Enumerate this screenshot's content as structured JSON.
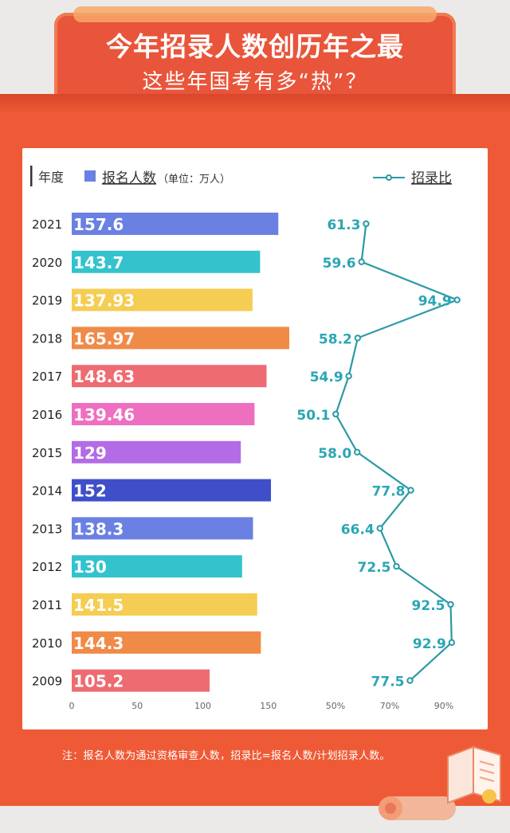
{
  "header": {
    "title_line1": "今年招录人数创历年之最",
    "title_line2": "这些年国考有多“热”？"
  },
  "legend": {
    "year_label": "年度",
    "bar_label": "报名人数",
    "bar_unit": "（单位：万人）",
    "line_label": "招录比"
  },
  "footnote": "注：报名人数为通过资格审查人数，招录比=报名人数/计划招录人数。",
  "colors": {
    "line": "#2a9aa4",
    "ratio_text": "#2aa6b4",
    "background": "#ef5a36"
  },
  "chart_data": {
    "type": "bar",
    "orientation": "horizontal",
    "categories": [
      "2021",
      "2020",
      "2019",
      "2018",
      "2017",
      "2016",
      "2015",
      "2014",
      "2013",
      "2012",
      "2011",
      "2010",
      "2009"
    ],
    "series": [
      {
        "name": "报名人数",
        "values": [
          157.6,
          143.7,
          137.93,
          165.97,
          148.63,
          139.46,
          129,
          152,
          138.3,
          130,
          141.5,
          144.3,
          105.2
        ],
        "value_labels": [
          "157.6",
          "143.7",
          "137.93",
          "165.97",
          "148.63",
          "139.46",
          "129",
          "152",
          "138.3",
          "130",
          "141.5",
          "144.3",
          "105.2"
        ],
        "colors": [
          "#6a80e2",
          "#33c3cd",
          "#f5cd52",
          "#f08a47",
          "#ee6b72",
          "#ee6fc0",
          "#b46be6",
          "#3f4fca",
          "#6a80e2",
          "#33c3cd",
          "#f5cd52",
          "#f08a47",
          "#ee6b72"
        ]
      },
      {
        "name": "招录比",
        "type": "line",
        "values": [
          61.3,
          59.6,
          94.9,
          58.2,
          54.9,
          50.1,
          58.0,
          77.8,
          66.4,
          72.5,
          92.5,
          92.9,
          77.5
        ],
        "value_labels": [
          "61.3",
          "59.6",
          "94.9",
          "58.2",
          "54.9",
          "50.1",
          "58.0",
          "77.8",
          "66.4",
          "72.5",
          "92.5",
          "92.9",
          "77.5"
        ]
      }
    ],
    "bar_axis": {
      "ticks": [
        "0",
        "50",
        "100",
        "150"
      ],
      "tick_values": [
        0,
        50,
        100,
        150
      ]
    },
    "ratio_axis": {
      "ticks": [
        "50%",
        "70%",
        "90%"
      ],
      "tick_values": [
        50,
        70,
        90
      ]
    }
  }
}
